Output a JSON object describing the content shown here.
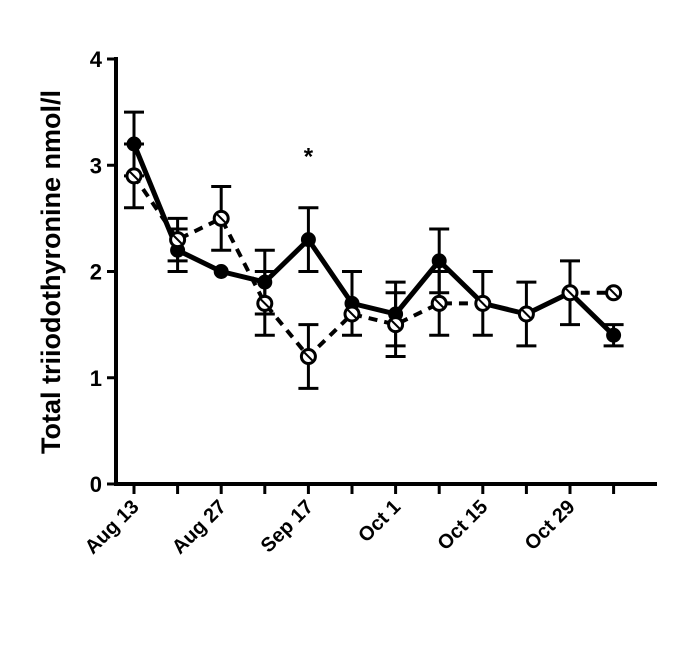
{
  "chart_data": {
    "type": "line",
    "ylabel": "Total triiodothyronine nmol/l",
    "ylim": [
      0,
      4
    ],
    "yticks": [
      "0",
      "1",
      "2",
      "3",
      "4"
    ],
    "x": [
      0,
      1,
      2,
      3,
      4,
      5,
      6,
      7,
      8,
      9,
      10,
      11
    ],
    "xtick_labels": [
      "Aug 13",
      "",
      "Aug 27",
      "",
      "Sep 17",
      "",
      "Oct 1",
      "",
      "Oct 15",
      "",
      "Oct 29",
      ""
    ],
    "series": [
      {
        "style": "solid-filled",
        "values": [
          3.2,
          2.2,
          2.0,
          1.9,
          2.3,
          1.7,
          1.6,
          2.1,
          1.7,
          1.6,
          1.8,
          1.4
        ],
        "error": [
          0.3,
          0.2,
          0.0,
          0.3,
          0.3,
          0.3,
          0.3,
          0.3,
          0.3,
          0.3,
          0.3,
          0.1
        ]
      },
      {
        "style": "dashed-open",
        "values": [
          2.9,
          2.3,
          2.5,
          1.7,
          1.2,
          1.6,
          1.5,
          1.7,
          1.7,
          1.6,
          1.8,
          1.8
        ],
        "error": [
          0.3,
          0.2,
          0.3,
          0.3,
          0.3,
          0.0,
          0.3,
          0.3,
          0.0,
          0.0,
          0.0,
          0.0
        ]
      }
    ],
    "annotations": [
      {
        "text": "*",
        "x": 4,
        "y": 3.1
      }
    ],
    "grid": false,
    "legend": "none"
  }
}
